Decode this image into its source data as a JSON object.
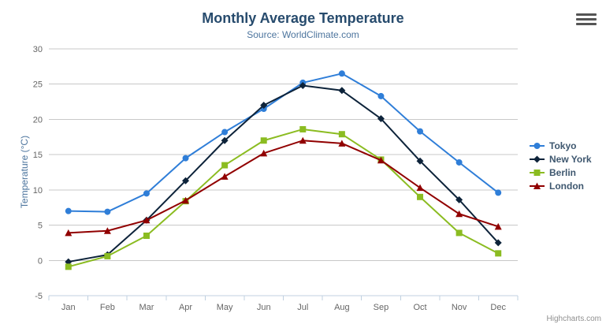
{
  "header": {
    "title": "Monthly Average Temperature",
    "subtitle": "Source: WorldClimate.com"
  },
  "export_menu": {
    "icon": "hamburger-icon"
  },
  "credits": {
    "label": "Highcharts.com"
  },
  "colors": {
    "title": "#274b6d",
    "subtitle": "#4d759e",
    "axis_title": "#4d759e",
    "axis_labels": "#666666",
    "gridline": "#C8C8C8",
    "axis_line": "#C0D0E0",
    "legend_text": "#3E576F",
    "credits_text": "#909090"
  },
  "chart_data": {
    "type": "line",
    "title": "Monthly Average Temperature",
    "subtitle": "Source: WorldClimate.com",
    "xlabel": "",
    "ylabel": "Temperature (°C)",
    "ylim": [
      -5,
      30
    ],
    "yticks": [
      -5,
      0,
      5,
      10,
      15,
      20,
      25,
      30
    ],
    "grid": true,
    "legend_position": "right",
    "categories": [
      "Jan",
      "Feb",
      "Mar",
      "Apr",
      "May",
      "Jun",
      "Jul",
      "Aug",
      "Sep",
      "Oct",
      "Nov",
      "Dec"
    ],
    "series": [
      {
        "name": "Tokyo",
        "color": "#2f7ed8",
        "marker": "circle",
        "values": [
          7.0,
          6.9,
          9.5,
          14.5,
          18.2,
          21.5,
          25.2,
          26.5,
          23.3,
          18.3,
          13.9,
          9.6
        ]
      },
      {
        "name": "New York",
        "color": "#0d233a",
        "marker": "diamond",
        "values": [
          -0.2,
          0.8,
          5.7,
          11.3,
          17.0,
          22.0,
          24.8,
          24.1,
          20.1,
          14.1,
          8.6,
          2.5
        ]
      },
      {
        "name": "Berlin",
        "color": "#8bbc21",
        "marker": "square",
        "values": [
          -0.9,
          0.6,
          3.5,
          8.4,
          13.5,
          17.0,
          18.6,
          17.9,
          14.3,
          9.0,
          3.9,
          1.0
        ]
      },
      {
        "name": "London",
        "color": "#910000",
        "marker": "triangle",
        "values": [
          3.9,
          4.2,
          5.7,
          8.5,
          11.9,
          15.2,
          17.0,
          16.6,
          14.2,
          10.3,
          6.6,
          4.8
        ]
      }
    ]
  }
}
